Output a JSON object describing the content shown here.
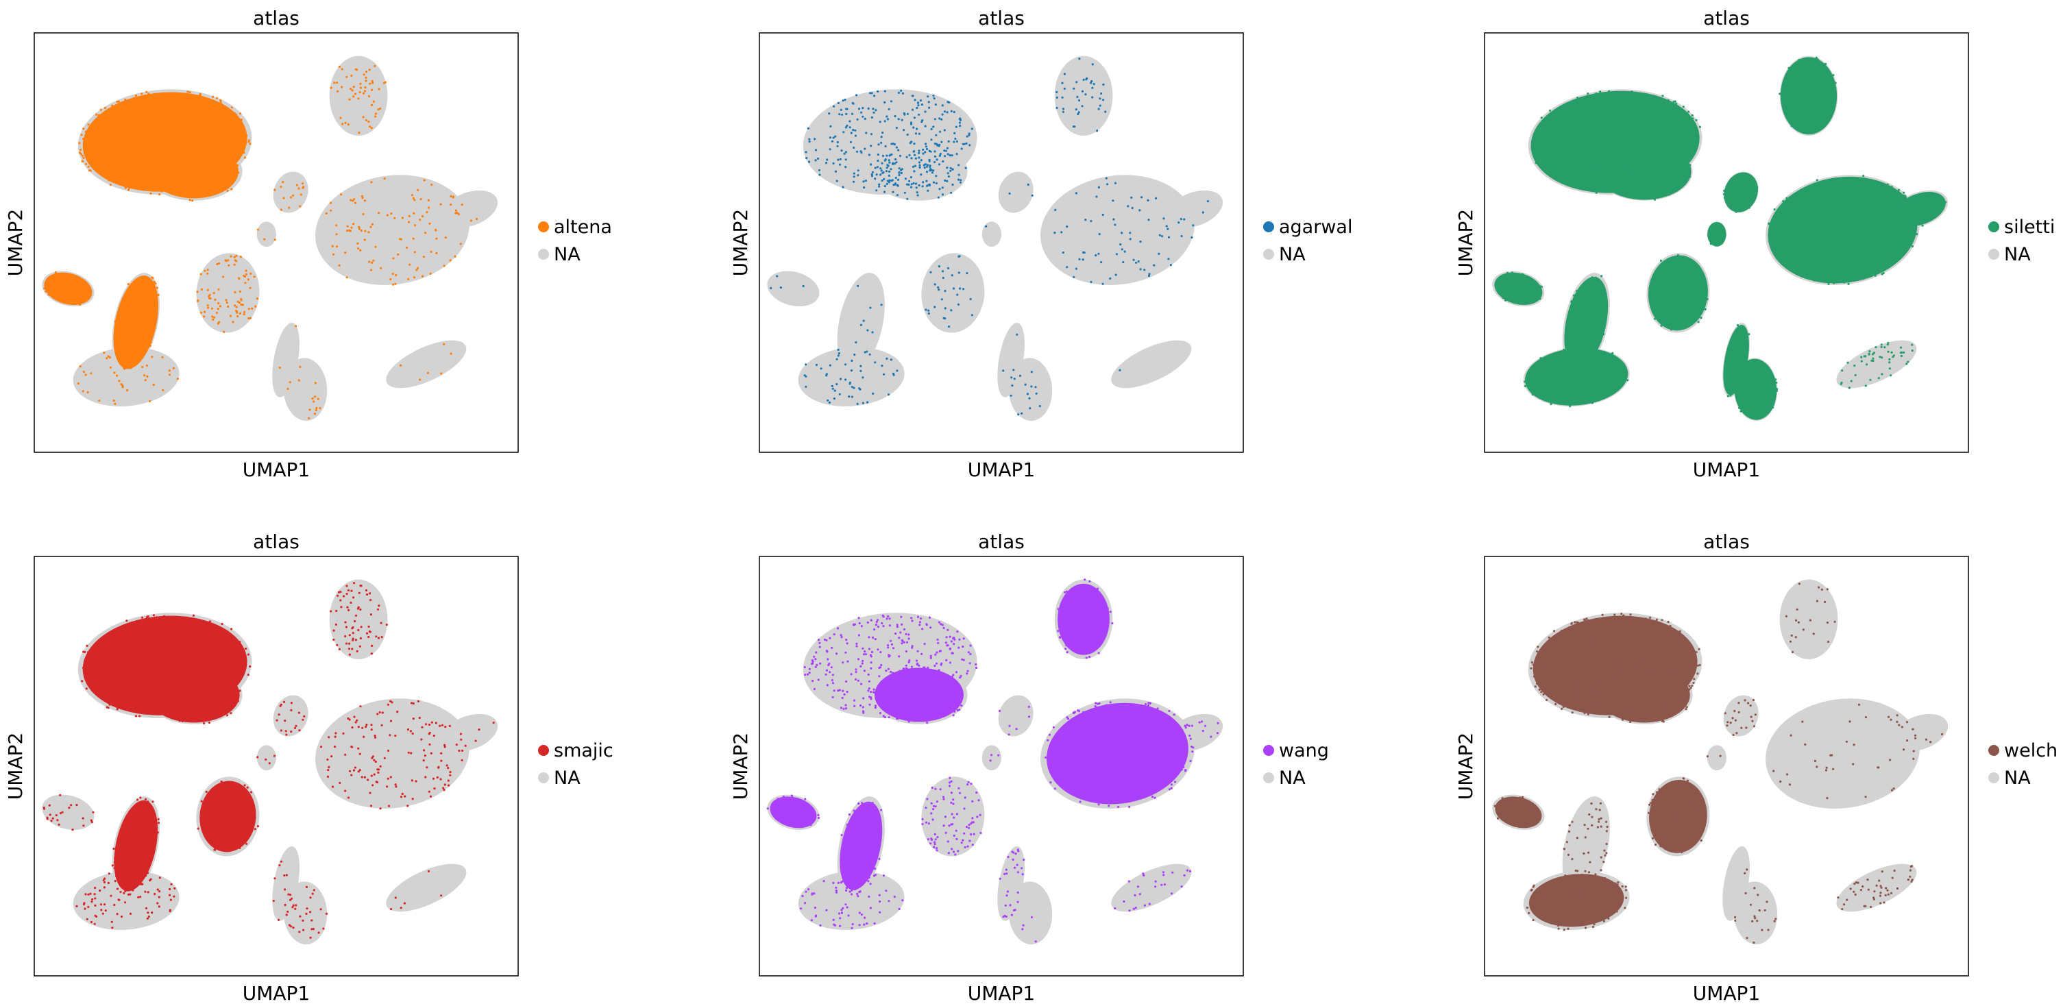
{
  "figure": {
    "background": "#ffffff",
    "na_color": "#d3d3d3"
  },
  "chart_data": [
    {
      "type": "scatter",
      "title": "atlas",
      "xlabel": "UMAP1",
      "ylabel": "UMAP2",
      "ticks_shown": false,
      "grid": false,
      "legend_placement": "right",
      "legend": [
        {
          "label": "altena",
          "color": "#ff7f0e"
        },
        {
          "label": "NA",
          "color": "#d3d3d3"
        }
      ],
      "highlight": {
        "name": "altena",
        "color": "#ff7f0e",
        "cluster_fill": [
          0.95,
          0.55,
          0.3,
          0.9,
          0.95,
          0.8,
          0.3,
          0.05,
          0.25,
          0.1,
          0.5,
          0.9,
          0.05,
          0.3
        ]
      }
    },
    {
      "type": "scatter",
      "title": "atlas",
      "xlabel": "UMAP1",
      "ylabel": "UMAP2",
      "ticks_shown": false,
      "grid": false,
      "legend_placement": "right",
      "legend": [
        {
          "label": "agarwal",
          "color": "#1f77b4"
        },
        {
          "label": "NA",
          "color": "#d3d3d3"
        }
      ],
      "highlight": {
        "name": "agarwal",
        "color": "#1f77b4",
        "cluster_fill": [
          0.7,
          0.4,
          0.2,
          0.1,
          0.1,
          0.3,
          0.4,
          0.1,
          0.25,
          0.02,
          0.1,
          0.8,
          0.05,
          0.1
        ]
      }
    },
    {
      "type": "scatter",
      "title": "atlas",
      "xlabel": "UMAP1",
      "ylabel": "UMAP2",
      "ticks_shown": false,
      "grid": false,
      "legend_placement": "right",
      "legend": [
        {
          "label": "siletti",
          "color": "#279e68"
        },
        {
          "label": "NA",
          "color": "#d3d3d3"
        }
      ],
      "highlight": {
        "name": "siletti",
        "color": "#279e68",
        "cluster_fill": [
          1,
          1,
          1,
          0.9,
          0.9,
          0.95,
          1,
          0.95,
          1,
          0.8,
          1,
          1,
          0.9,
          1
        ]
      }
    },
    {
      "type": "scatter",
      "title": "atlas",
      "xlabel": "UMAP1",
      "ylabel": "UMAP2",
      "ticks_shown": false,
      "grid": false,
      "legend_placement": "right",
      "legend": [
        {
          "label": "smajic",
          "color": "#d62728"
        },
        {
          "label": "NA",
          "color": "#d3d3d3"
        }
      ],
      "highlight": {
        "name": "smajic",
        "color": "#d62728",
        "cluster_fill": [
          0.95,
          0.7,
          0.4,
          0.6,
          0.9,
          0.85,
          0.6,
          0.3,
          0.5,
          0.1,
          0.6,
          0.95,
          0.1,
          0.4
        ]
      }
    },
    {
      "type": "scatter",
      "title": "atlas",
      "xlabel": "UMAP1",
      "ylabel": "UMAP2",
      "ticks_shown": false,
      "grid": false,
      "legend_placement": "right",
      "legend": [
        {
          "label": "wang",
          "color": "#aa40fc"
        },
        {
          "label": "NA",
          "color": "#d3d3d3"
        }
      ],
      "highlight": {
        "name": "wang",
        "color": "#aa40fc",
        "cluster_fill": [
          0.8,
          0.85,
          0.9,
          0.85,
          0.85,
          0.8,
          0.5,
          0.7,
          0.1,
          0.4,
          0.2,
          0.9,
          0.5,
          0.3
        ]
      }
    },
    {
      "type": "scatter",
      "title": "atlas",
      "xlabel": "UMAP1",
      "ylabel": "UMAP2",
      "ticks_shown": false,
      "grid": false,
      "legend_placement": "right",
      "legend": [
        {
          "label": "welch",
          "color": "#8c564b"
        },
        {
          "label": "NA",
          "color": "#d3d3d3"
        }
      ],
      "highlight": {
        "name": "welch",
        "color": "#8c564b",
        "cluster_fill": [
          0.95,
          0.2,
          0.1,
          0.85,
          0.5,
          0.9,
          0.85,
          0.1,
          0.3,
          0.7,
          0.7,
          0.95,
          0.2,
          0.15
        ]
      }
    }
  ]
}
